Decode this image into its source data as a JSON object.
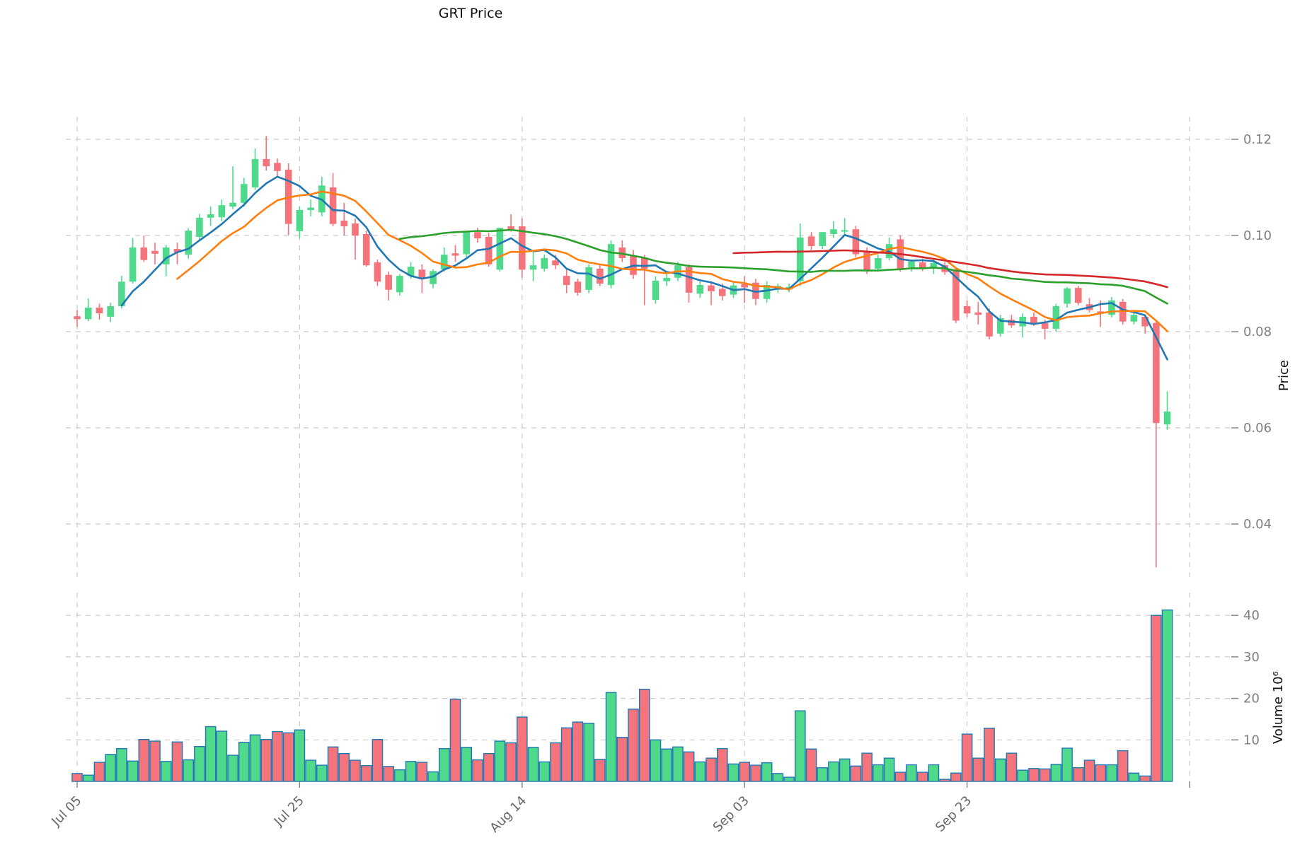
{
  "title": "GRT Price",
  "axes": {
    "price_label": "Price",
    "volume_label": "Volume  10⁶",
    "price_ticks": [
      0.04,
      0.06,
      0.08,
      0.1,
      0.12
    ],
    "price_tick_labels": [
      "0.04",
      "0.06",
      "0.08",
      "0.10",
      "0.12"
    ],
    "volume_ticks": [
      10,
      20,
      30,
      40
    ],
    "volume_tick_labels": [
      "10",
      "20",
      "30",
      "40"
    ],
    "x_ticks": [
      {
        "label": "Jul 05",
        "index": 0
      },
      {
        "label": "Jul 25",
        "index": 20
      },
      {
        "label": "Aug 14",
        "index": 40
      },
      {
        "label": "Sep 03",
        "index": 60
      },
      {
        "label": "Sep 23",
        "index": 80
      },
      {
        "label": "",
        "index": 100
      }
    ]
  },
  "chart_data": {
    "type": "candlestick",
    "title": "GRT Price",
    "ylabel": "Price",
    "volume_ylabel": "Volume  10⁶",
    "grid": true,
    "legend": "none",
    "price_ylim": [
      0.028,
      0.1255
    ],
    "volume_ylim_millions": [
      0,
      46
    ],
    "x_range_days": [
      "Jul 05",
      "Oct 11"
    ],
    "moving_averages": [
      {
        "name": "ma-5",
        "window": 5,
        "color": "#1f77b4"
      },
      {
        "name": "ma-10",
        "window": 10,
        "color": "#ff7f0e"
      },
      {
        "name": "ma-30",
        "window": 30,
        "color": "#2ca02c"
      },
      {
        "name": "ma-60",
        "window": 60,
        "color": "#d62728"
      }
    ],
    "colors": {
      "up": "#4fd98a",
      "down": "#f5737b",
      "volume_edge": "#1f77b4",
      "grid": "#cccccc",
      "tick_text": "#7f7f7f",
      "title_text": "#111111"
    },
    "columns": [
      "date",
      "open",
      "high",
      "low",
      "close",
      "volume_millions"
    ],
    "candles": [
      [
        "Jul 05",
        0.0832,
        0.0845,
        0.081,
        0.0826,
        1.9
      ],
      [
        "Jul 06",
        0.0826,
        0.0869,
        0.0822,
        0.085,
        1.5
      ],
      [
        "Jul 07",
        0.085,
        0.0858,
        0.0825,
        0.0838,
        4.6
      ],
      [
        "Jul 08",
        0.0831,
        0.086,
        0.082,
        0.0853,
        6.5
      ],
      [
        "Jul 09",
        0.0853,
        0.0916,
        0.0848,
        0.0904,
        7.9
      ],
      [
        "Jul 10",
        0.0904,
        0.0995,
        0.09,
        0.0975,
        4.9
      ],
      [
        "Jul 11",
        0.0975,
        0.1,
        0.0945,
        0.0949,
        10.1
      ],
      [
        "Jul 12",
        0.0968,
        0.0985,
        0.094,
        0.0962,
        9.7
      ],
      [
        "Jul 13",
        0.094,
        0.098,
        0.0915,
        0.0975,
        4.8
      ],
      [
        "Jul 14",
        0.0972,
        0.0985,
        0.094,
        0.0965,
        9.5
      ],
      [
        "Jul 15",
        0.096,
        0.1015,
        0.0952,
        0.101,
        5.2
      ],
      [
        "Jul 16",
        0.0997,
        0.1045,
        0.099,
        0.1037,
        8.4
      ],
      [
        "Jul 17",
        0.1037,
        0.106,
        0.102,
        0.1044,
        13.2
      ],
      [
        "Jul 18",
        0.1038,
        0.1075,
        0.103,
        0.1063,
        12.1
      ],
      [
        "Jul 19",
        0.106,
        0.1144,
        0.1055,
        0.1068,
        6.3
      ],
      [
        "Jul 20",
        0.1068,
        0.112,
        0.106,
        0.1107,
        9.4
      ],
      [
        "Jul 21",
        0.11,
        0.1181,
        0.1095,
        0.1159,
        11.2
      ],
      [
        "Jul 22",
        0.1159,
        0.1207,
        0.1135,
        0.1144,
        10.1
      ],
      [
        "Jul 23",
        0.1151,
        0.116,
        0.112,
        0.1134,
        12.0
      ],
      [
        "Jul 24",
        0.1137,
        0.115,
        0.1001,
        0.1024,
        11.7
      ],
      [
        "Jul 25",
        0.1009,
        0.106,
        0.0994,
        0.1053,
        12.4
      ],
      [
        "Jul 26",
        0.1053,
        0.1075,
        0.104,
        0.1058,
        5.1
      ],
      [
        "Jul 27",
        0.1048,
        0.1122,
        0.104,
        0.1104,
        3.9
      ],
      [
        "Jul 28",
        0.11,
        0.113,
        0.1019,
        0.1024,
        8.3
      ],
      [
        "Jul 29",
        0.1031,
        0.1068,
        0.1,
        0.1019,
        6.7
      ],
      [
        "Jul 30",
        0.1025,
        0.1035,
        0.095,
        0.1,
        5.1
      ],
      [
        "Jul 31",
        0.1003,
        0.101,
        0.0935,
        0.0938,
        3.8
      ],
      [
        "Aug 01",
        0.0944,
        0.095,
        0.0895,
        0.0904,
        10.1
      ],
      [
        "Aug 02",
        0.0918,
        0.0925,
        0.0865,
        0.0887,
        3.6
      ],
      [
        "Aug 03",
        0.0882,
        0.092,
        0.0875,
        0.0916,
        2.8
      ],
      [
        "Aug 04",
        0.0916,
        0.0945,
        0.091,
        0.0935,
        4.8
      ],
      [
        "Aug 05",
        0.0929,
        0.094,
        0.088,
        0.0909,
        4.6
      ],
      [
        "Aug 06",
        0.0899,
        0.093,
        0.089,
        0.0926,
        2.3
      ],
      [
        "Aug 07",
        0.093,
        0.0975,
        0.0925,
        0.096,
        7.9
      ],
      [
        "Aug 08",
        0.0963,
        0.098,
        0.0945,
        0.0958,
        19.8
      ],
      [
        "Aug 09",
        0.0961,
        0.101,
        0.0955,
        0.1009,
        8.2
      ],
      [
        "Aug 10",
        0.1007,
        0.1016,
        0.0985,
        0.0994,
        5.2
      ],
      [
        "Aug 11",
        0.0997,
        0.1005,
        0.0935,
        0.094,
        6.7
      ],
      [
        "Aug 12",
        0.0929,
        0.1016,
        0.0925,
        0.1016,
        9.7
      ],
      [
        "Aug 13",
        0.1019,
        0.1044,
        0.1008,
        0.1013,
        9.3
      ],
      [
        "Aug 14",
        0.1019,
        0.1036,
        0.0912,
        0.0929,
        15.5
      ],
      [
        "Aug 15",
        0.0929,
        0.0965,
        0.0905,
        0.0938,
        8.2
      ],
      [
        "Aug 16",
        0.0931,
        0.096,
        0.0925,
        0.0953,
        4.7
      ],
      [
        "Aug 17",
        0.0948,
        0.096,
        0.093,
        0.0938,
        9.3
      ],
      [
        "Aug 18",
        0.0916,
        0.093,
        0.088,
        0.0897,
        12.9
      ],
      [
        "Aug 19",
        0.0904,
        0.091,
        0.0875,
        0.0881,
        14.3
      ],
      [
        "Aug 20",
        0.0887,
        0.094,
        0.088,
        0.0934,
        14.0
      ],
      [
        "Aug 21",
        0.0931,
        0.094,
        0.0895,
        0.09,
        5.3
      ],
      [
        "Aug 22",
        0.0897,
        0.099,
        0.089,
        0.0982,
        21.4
      ],
      [
        "Aug 23",
        0.0975,
        0.099,
        0.0945,
        0.0953,
        10.6
      ],
      [
        "Aug 24",
        0.0957,
        0.097,
        0.091,
        0.0918,
        17.4
      ],
      [
        "Aug 25",
        0.0953,
        0.096,
        0.0855,
        0.0931,
        22.2
      ],
      [
        "Aug 26",
        0.0866,
        0.0915,
        0.0858,
        0.0906,
        10.0
      ],
      [
        "Aug 27",
        0.0905,
        0.092,
        0.0895,
        0.0912,
        7.8
      ],
      [
        "Aug 28",
        0.0912,
        0.0945,
        0.0905,
        0.0938,
        8.3
      ],
      [
        "Aug 29",
        0.0934,
        0.094,
        0.086,
        0.0881,
        7.1
      ],
      [
        "Aug 30",
        0.0879,
        0.0905,
        0.087,
        0.0897,
        4.7
      ],
      [
        "Aug 31",
        0.0896,
        0.0905,
        0.0855,
        0.0884,
        5.6
      ],
      [
        "Sep 01",
        0.0889,
        0.09,
        0.0865,
        0.0874,
        7.9
      ],
      [
        "Sep 02",
        0.0877,
        0.0905,
        0.087,
        0.0896,
        4.2
      ],
      [
        "Sep 03",
        0.0899,
        0.0915,
        0.086,
        0.0892,
        4.6
      ],
      [
        "Sep 04",
        0.0902,
        0.091,
        0.0855,
        0.0868,
        3.9
      ],
      [
        "Sep 05",
        0.0868,
        0.0905,
        0.086,
        0.0897,
        4.5
      ],
      [
        "Sep 06",
        0.0888,
        0.09,
        0.088,
        0.0895,
        1.9
      ],
      [
        "Sep 07",
        0.0888,
        0.09,
        0.0882,
        0.0893,
        1.0
      ],
      [
        "Sep 08",
        0.0905,
        0.1025,
        0.0895,
        0.0996,
        17.0
      ],
      [
        "Sep 09",
        0.0998,
        0.1007,
        0.097,
        0.0978,
        7.8
      ],
      [
        "Sep 10",
        0.0978,
        0.1007,
        0.0972,
        0.1007,
        3.3
      ],
      [
        "Sep 11",
        0.1003,
        0.103,
        0.0995,
        0.1013,
        4.7
      ],
      [
        "Sep 12",
        0.1008,
        0.1036,
        0.1,
        0.1011,
        5.4
      ],
      [
        "Sep 13",
        0.1013,
        0.102,
        0.0955,
        0.0961,
        3.7
      ],
      [
        "Sep 14",
        0.0966,
        0.0975,
        0.092,
        0.0927,
        6.8
      ],
      [
        "Sep 15",
        0.0931,
        0.096,
        0.0925,
        0.0953,
        4.0
      ],
      [
        "Sep 16",
        0.0953,
        0.0996,
        0.0948,
        0.0982,
        5.6
      ],
      [
        "Sep 17",
        0.0992,
        0.1,
        0.0925,
        0.0931,
        2.2
      ],
      [
        "Sep 18",
        0.0934,
        0.095,
        0.0925,
        0.0946,
        4.0
      ],
      [
        "Sep 19",
        0.0944,
        0.0952,
        0.0926,
        0.0931,
        2.2
      ],
      [
        "Sep 20",
        0.0931,
        0.095,
        0.092,
        0.0943,
        4.0
      ],
      [
        "Sep 21",
        0.0938,
        0.0945,
        0.0918,
        0.0924,
        0.5
      ],
      [
        "Sep 22",
        0.0926,
        0.093,
        0.0818,
        0.0823,
        2.0
      ],
      [
        "Sep 23",
        0.0853,
        0.0865,
        0.083,
        0.0838,
        11.4
      ],
      [
        "Sep 24",
        0.084,
        0.0862,
        0.0815,
        0.0835,
        5.6
      ],
      [
        "Sep 25",
        0.084,
        0.0848,
        0.0784,
        0.079,
        12.8
      ],
      [
        "Sep 26",
        0.0796,
        0.0835,
        0.079,
        0.0828,
        5.4
      ],
      [
        "Sep 27",
        0.0825,
        0.0835,
        0.0808,
        0.0813,
        6.8
      ],
      [
        "Sep 28",
        0.0811,
        0.0838,
        0.0788,
        0.0831,
        2.7
      ],
      [
        "Sep 29",
        0.0831,
        0.084,
        0.0812,
        0.0818,
        3.1
      ],
      [
        "Sep 30",
        0.0818,
        0.0825,
        0.0784,
        0.0806,
        3.0
      ],
      [
        "Oct 01",
        0.0806,
        0.0858,
        0.08,
        0.0853,
        4.1
      ],
      [
        "Oct 02",
        0.0858,
        0.0893,
        0.085,
        0.089,
        8.0
      ],
      [
        "Oct 03",
        0.0891,
        0.0895,
        0.0855,
        0.086,
        3.3
      ],
      [
        "Oct 04",
        0.0857,
        0.087,
        0.084,
        0.0845,
        5.1
      ],
      [
        "Oct 05",
        0.0842,
        0.0865,
        0.081,
        0.0838,
        4.0
      ],
      [
        "Oct 06",
        0.0835,
        0.0872,
        0.083,
        0.0865,
        4.0
      ],
      [
        "Oct 07",
        0.0862,
        0.0868,
        0.0815,
        0.0821,
        7.4
      ],
      [
        "Oct 08",
        0.0821,
        0.084,
        0.0815,
        0.0835,
        2.0
      ],
      [
        "Oct 09",
        0.0831,
        0.0836,
        0.0796,
        0.0811,
        1.3
      ],
      [
        "Oct 10",
        0.0818,
        0.082,
        0.031,
        0.061,
        40.0
      ],
      [
        "Oct 11",
        0.0607,
        0.0676,
        0.0596,
        0.0634,
        41.3
      ]
    ]
  }
}
